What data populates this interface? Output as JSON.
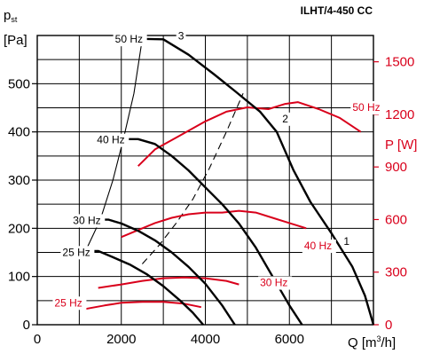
{
  "chart_data": {
    "type": "line",
    "title": "ILHT/4-450 CC",
    "ylabel_left": {
      "main": "p",
      "sub": "st",
      "unit": "[Pa]"
    },
    "ylabel_right": "P [W]",
    "xlabel": {
      "prefix": "Q [m",
      "sup": "3",
      "suffix": "/h]"
    },
    "xlim": [
      0,
      8000
    ],
    "ylim_left": [
      0,
      600
    ],
    "ylim_right": [
      0,
      1650
    ],
    "x_ticks": [
      0,
      2000,
      4000,
      6000
    ],
    "x_tick_labels": [
      "0",
      "2000",
      "4000",
      "6000"
    ],
    "y_left_ticks": [
      0,
      100,
      200,
      300,
      400,
      500
    ],
    "y_left_tick_labels": [
      "0",
      "100",
      "200",
      "300",
      "400",
      "500"
    ],
    "y_right_ticks": [
      0,
      300,
      600,
      900,
      1200,
      1500
    ],
    "y_right_tick_labels": [
      "0",
      "300",
      "600",
      "900",
      "1200",
      "1500"
    ],
    "grid": true,
    "colors": {
      "pressure": "#000000",
      "power": "#d9001b"
    },
    "pressure_series": [
      {
        "name": "50 Hz",
        "x": [
          2500,
          3000,
          3600,
          4200,
          4700,
          5300,
          5700,
          6100,
          6500,
          7000,
          7500,
          7800,
          8000
        ],
        "y": [
          593,
          592,
          560,
          520,
          485,
          442,
          400,
          320,
          255,
          190,
          120,
          60,
          0
        ]
      },
      {
        "name": "40 Hz",
        "x": [
          2050,
          2400,
          2800,
          3200,
          3600,
          4000,
          4400,
          4800,
          5200,
          5600,
          6000,
          6300
        ],
        "y": [
          385,
          385,
          375,
          350,
          320,
          285,
          250,
          210,
          160,
          100,
          40,
          0
        ]
      },
      {
        "name": "30 Hz",
        "x": [
          1450,
          1700,
          2000,
          2400,
          2800,
          3200,
          3600,
          4000,
          4400,
          4700
        ],
        "y": [
          218,
          218,
          210,
          195,
          175,
          150,
          120,
          85,
          40,
          0
        ]
      },
      {
        "name": "25 Hz",
        "x": [
          1150,
          1450,
          1800,
          2200,
          2600,
          3000,
          3400,
          3700,
          3950
        ],
        "y": [
          153,
          153,
          140,
          125,
          105,
          80,
          50,
          25,
          0
        ]
      }
    ],
    "system_curves": [
      {
        "x": [
          1150,
          1500,
          1800,
          2050,
          2300,
          2500
        ],
        "y": [
          153,
          218,
          300,
          385,
          480,
          593
        ]
      },
      {
        "x": [
          2500,
          2900,
          3300,
          3700,
          4100,
          4500,
          4900
        ],
        "y": [
          126,
          165,
          210,
          260,
          325,
          400,
          480
        ]
      }
    ],
    "power_series": [
      {
        "name": "50 Hz",
        "x": [
          2400,
          2800,
          3400,
          4000,
          4500,
          5000,
          5500,
          5900,
          6200,
          6700,
          7200,
          7700
        ],
        "y": [
          905,
          1000,
          1080,
          1160,
          1215,
          1240,
          1230,
          1260,
          1270,
          1230,
          1180,
          1100
        ]
      },
      {
        "name": "40 Hz",
        "x": [
          2000,
          2400,
          2800,
          3200,
          3600,
          4000,
          4400,
          4800,
          5200,
          5600,
          6000,
          6400
        ],
        "y": [
          500,
          540,
          580,
          610,
          630,
          640,
          640,
          650,
          640,
          610,
          580,
          550
        ]
      },
      {
        "name": "30 Hz",
        "x": [
          1450,
          2000,
          2500,
          3000,
          3500,
          4000,
          4500,
          4800
        ],
        "y": [
          210,
          230,
          250,
          265,
          270,
          265,
          250,
          230
        ]
      },
      {
        "name": "25 Hz",
        "x": [
          1150,
          1600,
          2000,
          2500,
          3000,
          3500,
          3900
        ],
        "y": [
          90,
          110,
          125,
          130,
          130,
          120,
          100
        ]
      }
    ],
    "annotations": [
      {
        "text": "50 Hz",
        "color": "black",
        "x": 1850,
        "y": 585
      },
      {
        "text": "40 Hz",
        "color": "black",
        "x": 1420,
        "y": 376
      },
      {
        "text": "30 Hz",
        "color": "black",
        "x": 850,
        "y": 209
      },
      {
        "text": "25 Hz",
        "color": "black",
        "x": 600,
        "y": 143
      },
      {
        "text": "3",
        "color": "black",
        "x": 3350,
        "y": 592
      },
      {
        "text": "2",
        "color": "black",
        "x": 5830,
        "y": 420
      },
      {
        "text": "1",
        "color": "black",
        "x": 7290,
        "y": 166
      },
      {
        "text": "50 Hz",
        "color": "red",
        "x": 7500,
        "y": 1220
      },
      {
        "text": "40 Hz",
        "color": "red",
        "x": 6350,
        "y": 430
      },
      {
        "text": "30 Hz",
        "color": "red",
        "x": 5300,
        "y": 220
      },
      {
        "text": "25 Hz",
        "color": "red",
        "x": 410,
        "y": 105
      }
    ]
  }
}
